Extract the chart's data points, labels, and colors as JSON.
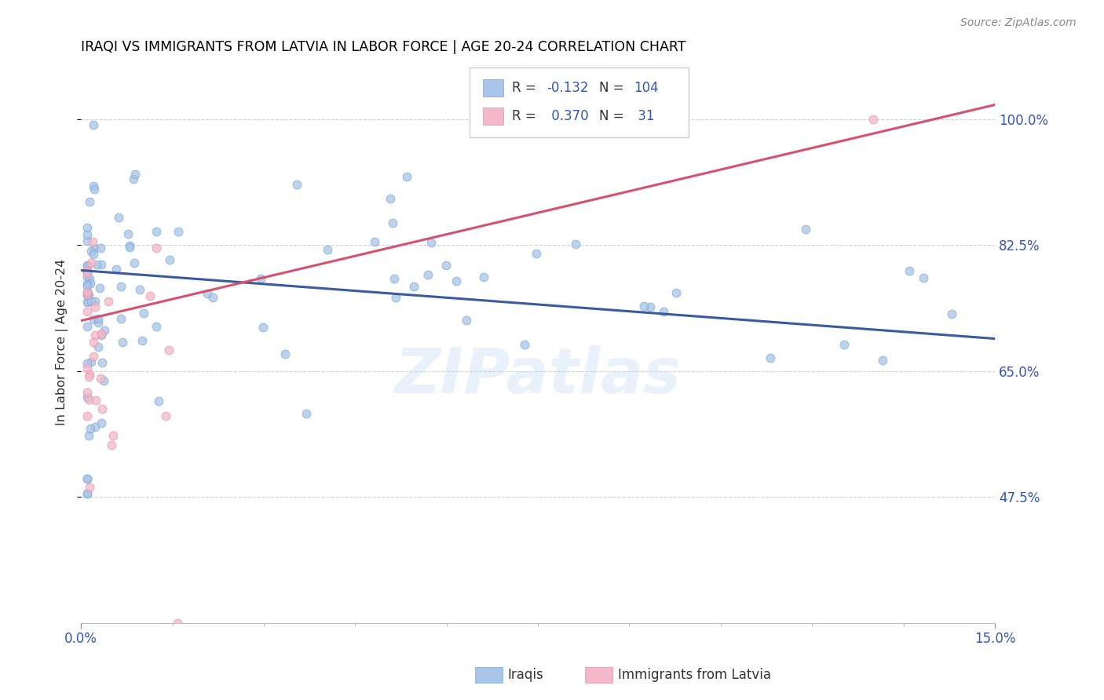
{
  "title": "IRAQI VS IMMIGRANTS FROM LATVIA IN LABOR FORCE | AGE 20-24 CORRELATION CHART",
  "source": "Source: ZipAtlas.com",
  "ylabel": "In Labor Force | Age 20-24",
  "watermark": "ZIPatlas",
  "iraqis_color": "#a8c4e8",
  "iraqis_edge_color": "#7baad4",
  "latvia_color": "#f4b8c8",
  "latvia_edge_color": "#e890a8",
  "iraqis_line_color": "#3a5ba0",
  "latvia_line_color": "#d94f6e",
  "xmin": 0.0,
  "xmax": 0.15,
  "ymin": 0.3,
  "ymax": 1.08,
  "ytick_values": [
    1.0,
    0.825,
    0.65,
    0.475
  ],
  "ytick_labels": [
    "100.0%",
    "82.5%",
    "65.0%",
    "47.5%"
  ],
  "iraq_line_x0": 0.0,
  "iraq_line_x1": 0.15,
  "iraq_line_y0": 0.79,
  "iraq_line_y1": 0.695,
  "latvia_line_x0": 0.0,
  "latvia_line_x1": 0.15,
  "latvia_line_y0": 0.72,
  "latvia_line_y1": 1.02
}
